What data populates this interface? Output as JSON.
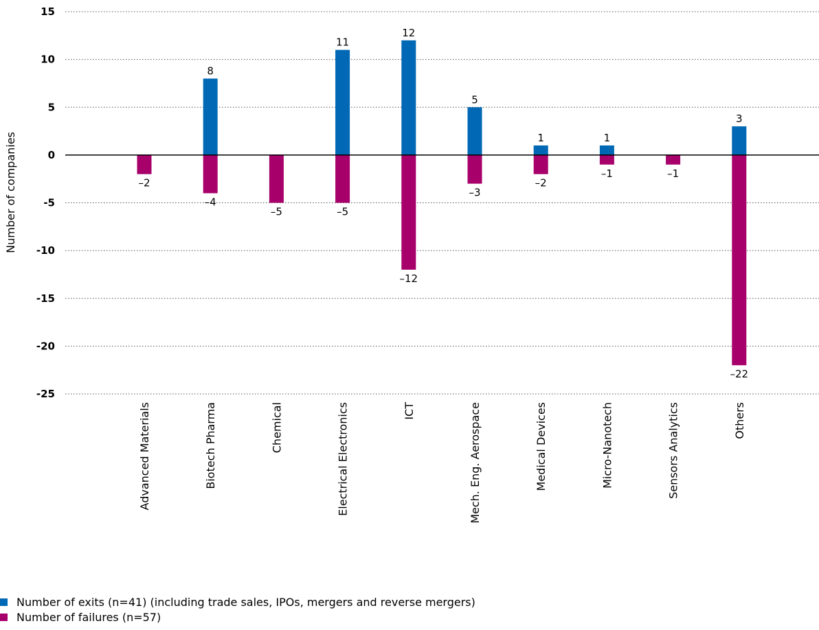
{
  "chart_data": {
    "type": "bar",
    "ylabel": "Number of companies",
    "ylim": [
      -25,
      15
    ],
    "yticks": [
      15,
      10,
      5,
      0,
      -5,
      -10,
      -15,
      -20,
      -25
    ],
    "ytick_labels": [
      "15",
      "10",
      "5",
      "0",
      "-5",
      "-10",
      "-15",
      "-20",
      "-25"
    ],
    "grid": "dotted horizontal",
    "legend_position": "bottom-left",
    "categories": [
      "Advanced Materials",
      "Biotech Pharma",
      "Chemical",
      "Electrical Electronics",
      "ICT",
      "Mech. Eng. Aerospace",
      "Medical Devices",
      "Micro-Nanotech",
      "Sensors Analytics",
      "Others"
    ],
    "series": [
      {
        "name": "Number of exits (n=41) (including trade sales, IPOs, mergers and reverse mergers)",
        "color": "#0068b4",
        "values": [
          null,
          8,
          null,
          11,
          12,
          5,
          1,
          1,
          null,
          3
        ],
        "labels": [
          "",
          "8",
          "",
          "11",
          "12",
          "5",
          "1",
          "1",
          "",
          "3"
        ]
      },
      {
        "name": "Number of failures (n=57)",
        "color": "#a8006b",
        "values": [
          -2,
          -4,
          -5,
          -5,
          -12,
          -3,
          -2,
          -1,
          -1,
          -22
        ],
        "labels": [
          "–2",
          "–4",
          "–5",
          "–5",
          "–12",
          "–3",
          "–2",
          "–1",
          "–1",
          "–22"
        ]
      }
    ]
  }
}
